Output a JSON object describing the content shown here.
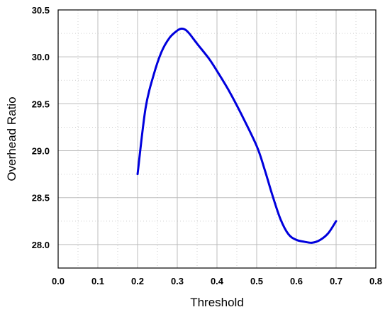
{
  "chart_data": {
    "type": "line",
    "title": "",
    "xlabel": "Threshold",
    "ylabel": "Overhead Ratio",
    "xlim": [
      0.0,
      0.8
    ],
    "ylim": [
      27.75,
      30.5
    ],
    "x_ticks": [
      0.0,
      0.1,
      0.2,
      0.3,
      0.4,
      0.5,
      0.6,
      0.7,
      0.8
    ],
    "x_tick_labels": [
      "0.0",
      "0.1",
      "0.2",
      "0.3",
      "0.4",
      "0.5",
      "0.6",
      "0.7",
      "0.8"
    ],
    "y_ticks": [
      28.0,
      28.5,
      29.0,
      29.5,
      30.0,
      30.5
    ],
    "y_tick_labels": [
      "28.0",
      "28.5",
      "29.0",
      "29.5",
      "30.0",
      "30.5"
    ],
    "grid": true,
    "legend": "none",
    "series": [
      {
        "color": "#0000dd",
        "x": [
          0.2,
          0.22,
          0.24,
          0.26,
          0.28,
          0.3,
          0.31,
          0.32,
          0.33,
          0.35,
          0.38,
          0.4,
          0.43,
          0.46,
          0.5,
          0.52,
          0.54,
          0.56,
          0.58,
          0.6,
          0.62,
          0.64,
          0.66,
          0.68,
          0.7
        ],
        "y": [
          28.75,
          29.45,
          29.8,
          30.05,
          30.2,
          30.28,
          30.3,
          30.29,
          30.25,
          30.14,
          29.98,
          29.85,
          29.64,
          29.4,
          29.05,
          28.8,
          28.52,
          28.27,
          28.11,
          28.05,
          28.03,
          28.02,
          28.05,
          28.12,
          28.25
        ]
      }
    ]
  }
}
